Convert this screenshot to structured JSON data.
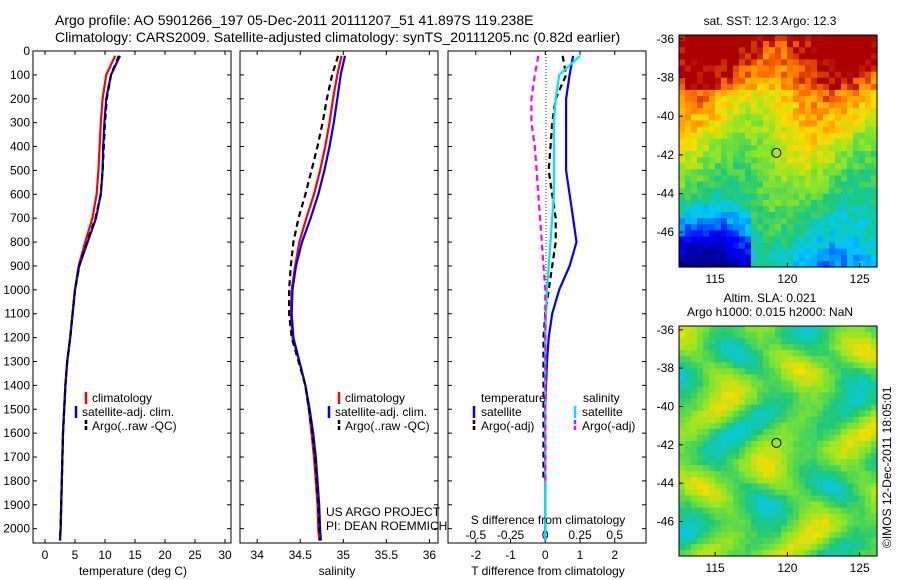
{
  "title": {
    "line1": "Argo profile: AO 5901266_197 05-Dec-2011 20111207_51 41.897S 119.238E",
    "line2": "Climatology: CARS2009. Satellite-adjusted climatology: synTS_20111205.nc (0.82d earlier)"
  },
  "colors": {
    "climatology": "#ff0000",
    "satellite": "#0000ff",
    "argo": "#000000",
    "salinity_satellite": "#00e5ff",
    "salinity_argo": "#ff00ff"
  },
  "depth_ticks": [
    0,
    100,
    200,
    300,
    400,
    500,
    600,
    700,
    800,
    900,
    1000,
    1100,
    1200,
    1300,
    1400,
    1500,
    1600,
    1700,
    1800,
    1900,
    2000
  ],
  "chart_data": [
    {
      "type": "line",
      "xlabel": "temperature (deg C)",
      "xlim": [
        -2,
        31
      ],
      "ylim": [
        2060,
        0
      ],
      "xticks": [
        0,
        5,
        10,
        15,
        20,
        25,
        30
      ],
      "legend": {
        "placement": "lower-center",
        "entries": [
          "climatology",
          "satellite-adj. clim.",
          "Argo(..raw -QC)"
        ]
      },
      "series": [
        {
          "name": "climatology",
          "color": "#ff0000",
          "dash": "",
          "x": [
            11.7,
            10.2,
            9.6,
            9.3,
            9.1,
            8.9,
            8.6,
            7.9,
            6.7,
            5.6,
            5.0,
            4.6,
            4.2,
            3.7,
            3.4,
            3.2,
            3.0,
            2.9,
            2.8,
            2.7,
            2.6,
            2.5
          ],
          "y": [
            20,
            100,
            200,
            300,
            400,
            500,
            600,
            700,
            800,
            900,
            1000,
            1100,
            1200,
            1300,
            1400,
            1500,
            1600,
            1700,
            1800,
            1900,
            2000,
            2050
          ]
        },
        {
          "name": "satellite-adj. clim.",
          "color": "#0000ff",
          "dash": "",
          "x": [
            12.5,
            11.0,
            10.2,
            9.9,
            9.7,
            9.6,
            9.3,
            8.5,
            7.1,
            5.7,
            5.0,
            4.6,
            4.2,
            3.7,
            3.4,
            3.2,
            3.0,
            2.9,
            2.8,
            2.7,
            2.6,
            2.5
          ],
          "y": [
            20,
            100,
            200,
            300,
            400,
            500,
            600,
            700,
            800,
            900,
            1000,
            1100,
            1200,
            1300,
            1400,
            1500,
            1600,
            1700,
            1800,
            1900,
            2000,
            2050
          ]
        },
        {
          "name": "Argo(..raw -QC)",
          "color": "#000000",
          "dash": "6,4",
          "x": [
            12.3,
            11.0,
            10.3,
            10.0,
            9.8,
            9.6,
            9.3,
            8.4,
            7.0,
            5.7,
            5.0,
            4.6,
            4.2,
            3.7,
            3.4,
            3.2,
            3.0,
            2.9,
            2.8,
            2.7,
            2.6,
            2.5
          ],
          "y": [
            20,
            100,
            200,
            300,
            400,
            500,
            600,
            700,
            800,
            900,
            1000,
            1100,
            1200,
            1300,
            1400,
            1500,
            1600,
            1700,
            1800,
            1900,
            2000,
            2050
          ]
        }
      ]
    },
    {
      "type": "line",
      "xlabel": "salinity",
      "xlim": [
        33.8,
        36.1
      ],
      "ylim": [
        2060,
        0
      ],
      "xticks": [
        34,
        34.5,
        35,
        35.5,
        36
      ],
      "legend": {
        "placement": "lower-center",
        "entries": [
          "climatology",
          "satellite-adj. clim.",
          "Argo(..raw -QC)"
        ]
      },
      "series": [
        {
          "name": "climatology",
          "color": "#ff0000",
          "dash": "",
          "x": [
            34.98,
            34.93,
            34.88,
            34.84,
            34.79,
            34.73,
            34.66,
            34.57,
            34.49,
            34.44,
            34.4,
            34.39,
            34.41,
            34.49,
            34.56,
            34.6,
            34.63,
            34.66,
            34.68,
            34.7,
            34.71,
            34.72
          ],
          "y": [
            20,
            100,
            200,
            300,
            400,
            500,
            600,
            700,
            800,
            900,
            1000,
            1100,
            1200,
            1300,
            1400,
            1500,
            1600,
            1700,
            1800,
            1900,
            2000,
            2050
          ]
        },
        {
          "name": "satellite-adj. clim.",
          "color": "#0000ff",
          "dash": "",
          "x": [
            35.02,
            34.97,
            34.93,
            34.89,
            34.84,
            34.78,
            34.71,
            34.62,
            34.52,
            34.45,
            34.41,
            34.4,
            34.42,
            34.49,
            34.56,
            34.61,
            34.65,
            34.68,
            34.7,
            34.72,
            34.73,
            34.74
          ],
          "y": [
            20,
            100,
            200,
            300,
            400,
            500,
            600,
            700,
            800,
            900,
            1000,
            1100,
            1200,
            1300,
            1400,
            1500,
            1600,
            1700,
            1800,
            1900,
            2000,
            2050
          ]
        },
        {
          "name": "Argo(..raw -QC)",
          "color": "#000000",
          "dash": "6,4",
          "x": [
            34.94,
            34.87,
            34.81,
            34.76,
            34.7,
            34.63,
            34.56,
            34.48,
            34.42,
            34.39,
            34.37,
            34.37,
            34.4,
            34.48,
            34.56,
            34.6,
            34.64,
            34.67,
            34.69,
            34.71,
            34.72,
            34.73
          ],
          "y": [
            20,
            100,
            200,
            300,
            400,
            500,
            600,
            700,
            800,
            900,
            1000,
            1100,
            1200,
            1300,
            1400,
            1500,
            1600,
            1700,
            1800,
            1900,
            2000,
            2050
          ]
        }
      ]
    },
    {
      "type": "line",
      "xlabel": "T difference from climatology",
      "top_axis_label": "S difference from climatology",
      "xlim": [
        -2.8,
        2.9
      ],
      "ylim": [
        2060,
        0
      ],
      "xticks": [
        -2,
        -1,
        0,
        1,
        2
      ],
      "top_ticks": [
        {
          "label": "-0.5",
          "value": -2
        },
        {
          "label": "-0.25",
          "value": -1
        },
        {
          "label": "0",
          "value": 0
        },
        {
          "label": "0.25",
          "value": 1
        },
        {
          "label": "0.5",
          "value": 2
        }
      ],
      "legend": {
        "placement": "lower-center",
        "temperature_heading": "temperature",
        "salinity_heading": "salinity",
        "temperature_entries": [
          "satellite",
          "Argo(-adj)"
        ],
        "salinity_entries": [
          "satellite",
          "Argo(-adj)"
        ]
      },
      "series": [
        {
          "name": "satellite",
          "color": "#0000ff",
          "dash": "",
          "x": [
            0.8,
            0.7,
            0.6,
            0.6,
            0.6,
            0.6,
            0.7,
            0.8,
            0.9,
            0.7,
            0.4,
            0.2,
            0.1,
            0.05,
            0.02,
            0.0,
            0.0,
            0.0,
            0.0,
            0.0
          ],
          "y": [
            20,
            100,
            200,
            300,
            400,
            500,
            600,
            700,
            800,
            900,
            1000,
            1100,
            1200,
            1300,
            1400,
            1500,
            1600,
            1700,
            1800,
            2050
          ]
        },
        {
          "name": "Argo(-adj)",
          "color": "#000000",
          "dash": "6,4",
          "x": [
            0.5,
            0.6,
            0.3,
            0.2,
            0.15,
            0.1,
            0.2,
            0.3,
            0.3,
            0.2,
            0.1,
            0.0,
            -0.05,
            -0.05,
            -0.05,
            -0.05,
            -0.05,
            -0.05,
            -0.05
          ],
          "y": [
            20,
            100,
            200,
            300,
            400,
            500,
            600,
            700,
            800,
            900,
            1000,
            1100,
            1200,
            1300,
            1400,
            1500,
            1600,
            1700,
            1800
          ]
        },
        {
          "name": "satellite",
          "color": "#00e5ff",
          "dash": "",
          "x": [
            1.0,
            0.4,
            0.3,
            0.25,
            0.25,
            0.25,
            0.25,
            0.2,
            0.15,
            0.1,
            0.05,
            0.02,
            0.0,
            0.0,
            0.0,
            0.0,
            0.0,
            0.0,
            0.0,
            0.0
          ],
          "y": [
            20,
            100,
            200,
            300,
            400,
            500,
            600,
            700,
            800,
            900,
            1000,
            1100,
            1200,
            1300,
            1400,
            1500,
            1600,
            1700,
            1800,
            2050
          ]
        },
        {
          "name": "Argo(-adj)",
          "color": "#ff00ff",
          "dash": "6,4",
          "x": [
            -0.2,
            -0.3,
            -0.4,
            -0.4,
            -0.3,
            -0.25,
            -0.2,
            -0.15,
            -0.1,
            -0.05,
            0.0,
            0.0,
            0.0,
            0.0,
            0.0,
            0.0,
            0.0,
            0.0,
            0.0
          ],
          "y": [
            20,
            100,
            200,
            300,
            400,
            500,
            600,
            700,
            800,
            900,
            1000,
            1100,
            1200,
            1300,
            1400,
            1500,
            1600,
            1700,
            1800
          ]
        }
      ]
    },
    {
      "type": "heatmap",
      "title": "sat. SST: 12.3 Argo: 12.3",
      "xlim": [
        112.5,
        126.2
      ],
      "ylim": [
        -47.8,
        -35.8
      ],
      "xticks": [
        115,
        120,
        125
      ],
      "yticks": [
        -36,
        -38,
        -40,
        -42,
        -44,
        -46
      ],
      "marker": {
        "lon": 119.238,
        "lat": -41.897
      }
    },
    {
      "type": "heatmap",
      "title_line1": "Altim. SLA: 0.021",
      "title_line2": "Argo h1000: 0.015 h2000: NaN",
      "xlim": [
        112.5,
        126.2
      ],
      "ylim": [
        -47.8,
        -35.8
      ],
      "xticks": [
        115,
        120,
        125
      ],
      "yticks": [
        -36,
        -38,
        -40,
        -42,
        -44,
        -46
      ],
      "marker": {
        "lon": 119.238,
        "lat": -41.897
      }
    }
  ],
  "annotations": {
    "project": "US ARGO PROJECT",
    "pi": "PI: DEAN ROEMMICH",
    "credit": "©IMOS 12-Dec-2011 18:05:01"
  }
}
